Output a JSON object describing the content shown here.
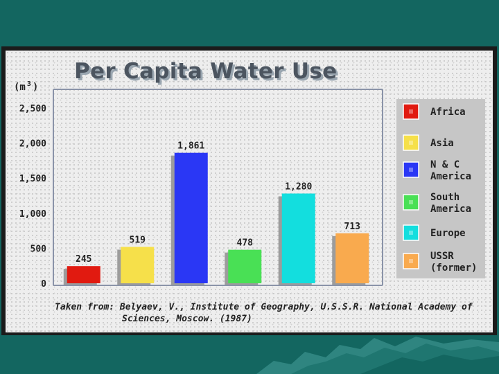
{
  "chart_data": {
    "type": "bar",
    "title": "Per Capita Water Use",
    "ylabel": "(m",
    "ylabel_sup": "3",
    "ylabel_close": ")",
    "ylim": [
      0,
      2500
    ],
    "yticks": [
      {
        "value": 0,
        "label": "0"
      },
      {
        "value": 500,
        "label": "500"
      },
      {
        "value": 1000,
        "label": "1,000"
      },
      {
        "value": 1500,
        "label": "1,500"
      },
      {
        "value": 2000,
        "label": "2,000"
      },
      {
        "value": 2500,
        "label": "2,500"
      }
    ],
    "categories": [
      "Africa",
      "Asia",
      "N & C America",
      "South America",
      "Europe",
      "USSR (former)"
    ],
    "values": [
      245,
      519,
      1861,
      478,
      1280,
      713
    ],
    "value_labels": [
      "245",
      "519",
      "1,861",
      "478",
      "1,280",
      "713"
    ],
    "colors": [
      "#e11a10",
      "#f6e04a",
      "#2a37f5",
      "#49e055",
      "#13dede",
      "#f9aa4e"
    ],
    "legend": [
      {
        "lines": [
          "Africa"
        ],
        "color": "#e11a10"
      },
      {
        "lines": [
          "Asia"
        ],
        "color": "#f6e04a"
      },
      {
        "lines": [
          "N & C",
          "America"
        ],
        "color": "#2a37f5"
      },
      {
        "lines": [
          "South",
          "America"
        ],
        "color": "#49e055"
      },
      {
        "lines": [
          "Europe"
        ],
        "color": "#13dede"
      },
      {
        "lines": [
          "USSR",
          "(former)"
        ],
        "color": "#f9aa4e"
      }
    ],
    "legend_position": "right",
    "grid": false,
    "source_lines": [
      "Taken from: Belyaev, V., Institute of Geography, U.S.S.R. National Academy of",
      "Sciences, Moscow.  (1987)"
    ]
  }
}
